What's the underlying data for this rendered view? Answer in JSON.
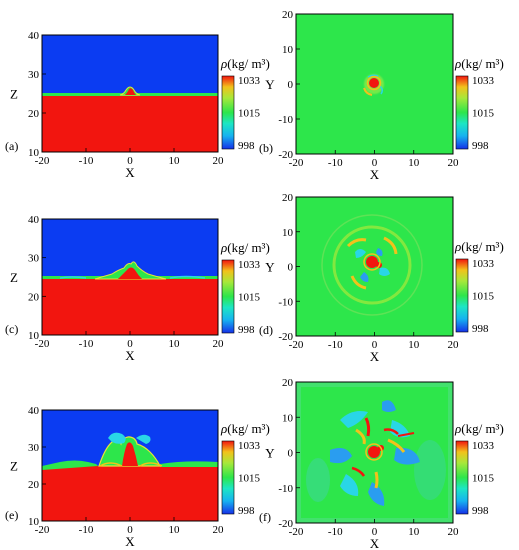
{
  "colors": {
    "light": "#0b3cf2",
    "mid": "#2de64b",
    "heavy": "#f2150f",
    "frame": "#000000"
  },
  "colorbar": {
    "label_rho": "ρ",
    "label_unit": "(kg/ m³)",
    "max": "1033",
    "mid": "1015",
    "min": "998"
  },
  "side_panels": [
    {
      "label": "(a)",
      "xlabel": "X",
      "ylabel": "Z"
    },
    {
      "label": "(c)",
      "xlabel": "X",
      "ylabel": "Z"
    },
    {
      "label": "(e)",
      "xlabel": "X",
      "ylabel": "Z"
    }
  ],
  "top_panels": [
    {
      "label": "(b)",
      "xlabel": "X",
      "ylabel": "Y"
    },
    {
      "label": "(d)",
      "xlabel": "X",
      "ylabel": "Y"
    },
    {
      "label": "(f)",
      "xlabel": "X",
      "ylabel": "Y"
    }
  ],
  "side_ticks": {
    "x": [
      "-20",
      "-10",
      "0",
      "10",
      "20"
    ],
    "z": [
      "10",
      "20",
      "30",
      "40"
    ]
  },
  "top_ticks": {
    "x": [
      "-20",
      "-10",
      "0",
      "10",
      "20"
    ],
    "y": [
      "-20",
      "-10",
      "0",
      "10",
      "20"
    ]
  },
  "chart_data": [
    {
      "type": "heatmap",
      "panel": "(a)",
      "xlabel": "X",
      "ylabel": "Z",
      "xlim": [
        -20,
        20
      ],
      "ylim": [
        10,
        40
      ],
      "colorbar_range": [
        998,
        1033
      ],
      "interface_z": 25,
      "bump_height": 2
    },
    {
      "type": "heatmap",
      "panel": "(b)",
      "xlabel": "X",
      "ylabel": "Y",
      "xlim": [
        -20,
        20
      ],
      "ylim": [
        -20,
        20
      ],
      "colorbar_range": [
        998,
        1033
      ]
    },
    {
      "type": "heatmap",
      "panel": "(c)",
      "xlabel": "X",
      "ylabel": "Z",
      "xlim": [
        -20,
        20
      ],
      "ylim": [
        10,
        40
      ],
      "colorbar_range": [
        998,
        1033
      ],
      "interface_z": 25,
      "bump_height": 3.5
    },
    {
      "type": "heatmap",
      "panel": "(d)",
      "xlabel": "X",
      "ylabel": "Y",
      "xlim": [
        -20,
        20
      ],
      "ylim": [
        -20,
        20
      ],
      "colorbar_range": [
        998,
        1033
      ]
    },
    {
      "type": "heatmap",
      "panel": "(e)",
      "xlabel": "X",
      "ylabel": "Z",
      "xlim": [
        -20,
        20
      ],
      "ylim": [
        10,
        40
      ],
      "colorbar_range": [
        998,
        1033
      ],
      "interface_z": 25,
      "bump_height": 8
    },
    {
      "type": "heatmap",
      "panel": "(f)",
      "xlabel": "X",
      "ylabel": "Y",
      "xlim": [
        -20,
        20
      ],
      "ylim": [
        -20,
        20
      ],
      "colorbar_range": [
        998,
        1033
      ]
    }
  ]
}
